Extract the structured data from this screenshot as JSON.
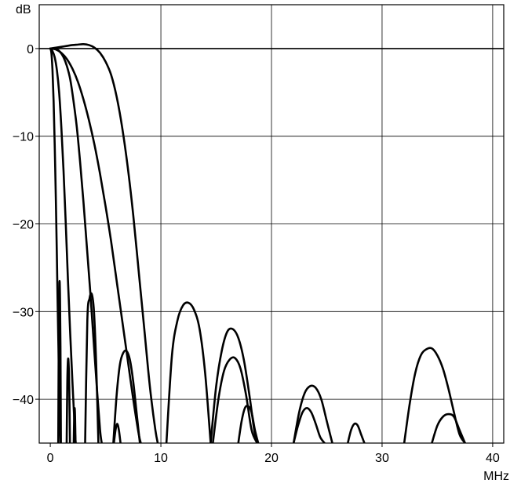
{
  "chart_data": {
    "type": "line",
    "title": "",
    "xlabel": "MHz",
    "ylabel": "dB",
    "xlim": [
      -1,
      41
    ],
    "ylim": [
      -45,
      5
    ],
    "x_ticks": [
      0,
      10,
      20,
      30,
      40
    ],
    "y_ticks": [
      0,
      -10,
      -20,
      -30,
      -40
    ],
    "x_tick_labels": [
      "0",
      "10",
      "20",
      "30",
      "40"
    ],
    "y_tick_labels": [
      "0",
      "−10",
      "−20",
      "−30",
      "−40"
    ],
    "grid": true,
    "legend": "none",
    "series": [
      {
        "x": [
          0,
          0.1,
          0.2,
          0.3,
          0.4,
          0.5,
          0.55,
          0.6,
          0.65,
          0.7,
          0.75,
          0.8,
          0.85,
          0.9,
          0.93
        ],
        "y": [
          0,
          -0.5,
          -2.5,
          -6,
          -11,
          -17,
          -20.5,
          -24,
          -28,
          -31.5,
          -35,
          -38.5,
          -41.5,
          -44,
          -45
        ]
      },
      {
        "x": [
          0.72,
          0.76,
          0.8,
          0.84,
          0.88,
          0.92,
          0.96
        ],
        "y": [
          -45,
          -34,
          -28.5,
          -26.5,
          -28.5,
          -34,
          -45
        ]
      },
      {
        "x": [
          1.48,
          1.54,
          1.6,
          1.66,
          1.72,
          1.78
        ],
        "y": [
          -45,
          -38,
          -35.5,
          -36,
          -39,
          -45
        ]
      },
      {
        "x": [
          2.12,
          2.16,
          2.2,
          2.24,
          2.28
        ],
        "y": [
          -45,
          -42,
          -41,
          -42,
          -45
        ]
      },
      {
        "x": [
          0,
          0.2,
          0.4,
          0.6,
          0.8,
          1.0,
          1.2,
          1.4,
          1.6,
          1.8,
          2.0,
          2.2,
          2.3
        ],
        "y": [
          0,
          -0.3,
          -1,
          -2.5,
          -5,
          -9,
          -14,
          -20,
          -26.5,
          -32.5,
          -38,
          -43,
          -45
        ]
      },
      {
        "x": [
          3.15,
          3.35,
          3.55,
          3.75,
          3.95,
          4.15,
          4.35
        ],
        "y": [
          -45,
          -31,
          -28.5,
          -28,
          -30,
          -36,
          -45
        ]
      },
      {
        "x": [
          0,
          0.3,
          0.6,
          0.9,
          1.2,
          1.5,
          1.8,
          2.1,
          2.4,
          2.7,
          3.0,
          3.3,
          3.6,
          3.9,
          4.2,
          4.5,
          4.65
        ],
        "y": [
          0,
          0,
          -0.1,
          -0.4,
          -1,
          -2,
          -3.5,
          -6,
          -9,
          -13,
          -17.5,
          -22.5,
          -27.5,
          -33,
          -38.5,
          -43.5,
          -45
        ]
      },
      {
        "x": [
          5.75,
          5.9,
          6.05,
          6.2,
          6.35
        ],
        "y": [
          -45,
          -43.5,
          -42.8,
          -43.5,
          -45
        ]
      },
      {
        "x": [
          5.7,
          6.0,
          6.3,
          6.6,
          6.9,
          7.2,
          7.5,
          7.8,
          8.1
        ],
        "y": [
          -45,
          -39.5,
          -36,
          -34.7,
          -34.5,
          -35.5,
          -38,
          -41.5,
          -45
        ]
      },
      {
        "x": [
          0,
          0.5,
          1.0,
          1.5,
          2.0,
          2.5,
          3.0,
          3.5,
          4.0,
          4.5,
          5.0,
          5.5,
          6.0,
          6.5,
          7.0,
          7.5,
          8.0,
          8.3
        ],
        "y": [
          0,
          -0.1,
          -0.5,
          -1.2,
          -2.3,
          -3.8,
          -5.8,
          -8.2,
          -11,
          -14.3,
          -18,
          -22,
          -26.5,
          -31,
          -35.5,
          -40,
          -44,
          -45.5
        ]
      },
      {
        "x": [
          0,
          0.5,
          1.0,
          1.5,
          2.0,
          2.5,
          3.0,
          3.5,
          4.0,
          4.5,
          5.0,
          5.5,
          6.0,
          6.5,
          7.0,
          7.5,
          8.0,
          8.5,
          9.0,
          9.5,
          9.8
        ],
        "y": [
          0,
          0.1,
          0.2,
          0.3,
          0.4,
          0.45,
          0.5,
          0.4,
          0.1,
          -0.5,
          -1.5,
          -3,
          -5.5,
          -9,
          -13.5,
          -19,
          -25.5,
          -32,
          -38.5,
          -43.5,
          -45.5
        ]
      },
      {
        "x": [
          10.5,
          11,
          11.5,
          12,
          12.5,
          13,
          13.5,
          14,
          14.5
        ],
        "y": [
          -45,
          -35,
          -31,
          -29.3,
          -29,
          -29.8,
          -32,
          -37,
          -45
        ]
      },
      {
        "x": [
          14.5,
          15,
          15.5,
          16,
          16.5,
          17,
          17.5,
          18,
          18.5,
          18.8
        ],
        "y": [
          -45,
          -38.5,
          -34.5,
          -32.3,
          -32,
          -33,
          -35.5,
          -39.5,
          -44,
          -45
        ]
      },
      {
        "x": [
          14.7,
          15.2,
          15.7,
          16.2,
          16.7,
          17.2,
          17.7,
          18.2,
          18.7
        ],
        "y": [
          -45,
          -40,
          -36.8,
          -35.5,
          -35.3,
          -36.5,
          -39.5,
          -43.5,
          -45
        ]
      },
      {
        "x": [
          17.0,
          17.3,
          17.6,
          17.9,
          18.2,
          18.5,
          18.8
        ],
        "y": [
          -45,
          -42.5,
          -41,
          -40.8,
          -41.5,
          -43.5,
          -45
        ]
      },
      {
        "x": [
          22.0,
          22.5,
          23.0,
          23.5,
          24.0,
          24.5,
          25.0,
          25.5
        ],
        "y": [
          -45,
          -41.5,
          -39.3,
          -38.5,
          -38.7,
          -40,
          -42.5,
          -45
        ]
      },
      {
        "x": [
          22.0,
          22.4,
          22.8,
          23.2,
          23.6,
          24.0,
          24.4,
          24.8
        ],
        "y": [
          -45,
          -43,
          -41.5,
          -41,
          -41.5,
          -42.8,
          -44.3,
          -45
        ]
      },
      {
        "x": [
          26.9,
          27.2,
          27.5,
          27.8,
          28.1,
          28.4
        ],
        "y": [
          -45,
          -43.5,
          -42.8,
          -43,
          -44,
          -45
        ]
      },
      {
        "x": [
          32.0,
          32.5,
          33.0,
          33.5,
          34.0,
          34.5,
          35.0,
          35.5,
          36.0,
          36.5,
          37.0,
          37.5
        ],
        "y": [
          -45,
          -40.5,
          -37,
          -35,
          -34.3,
          -34.2,
          -35,
          -36.5,
          -38.8,
          -41.5,
          -44,
          -45
        ]
      },
      {
        "x": [
          34.5,
          35.0,
          35.5,
          36.0,
          36.5,
          37.0,
          37.5
        ],
        "y": [
          -45,
          -43,
          -42,
          -41.7,
          -42,
          -43.5,
          -45
        ]
      }
    ]
  }
}
